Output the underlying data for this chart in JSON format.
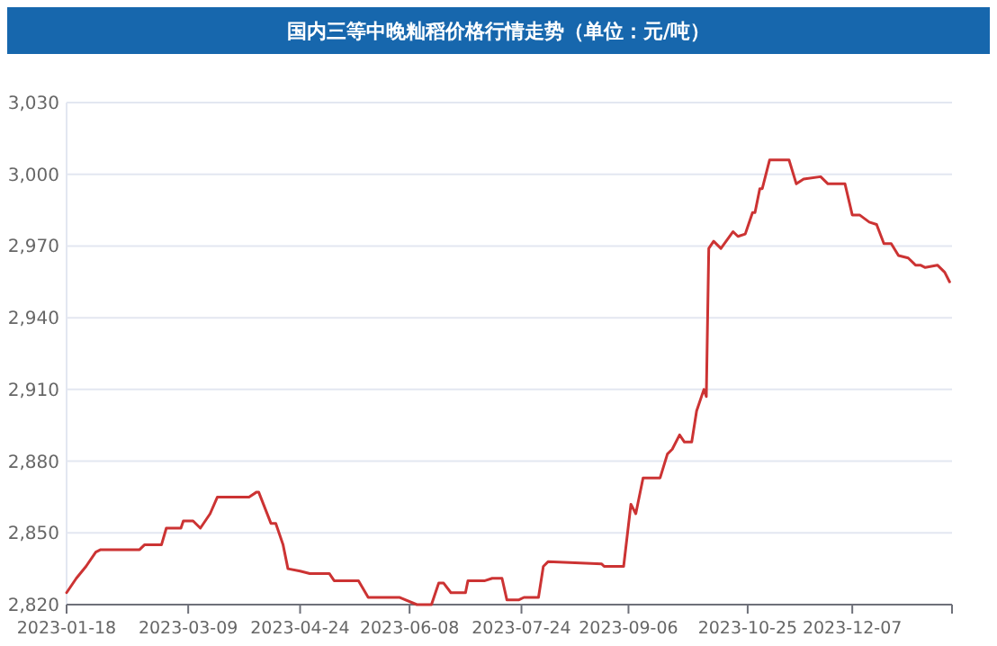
{
  "chart_data": {
    "type": "line",
    "title": "国内三等中晚籼稻价格行情走势（单位：元/吨）",
    "x": [
      "2023-01-18",
      "2023-01-22",
      "2023-01-26",
      "2023-01-30",
      "2023-02-01",
      "2023-02-17",
      "2023-02-19",
      "2023-02-26",
      "2023-02-28",
      "2023-03-06",
      "2023-03-07",
      "2023-03-11",
      "2023-03-14",
      "2023-03-18",
      "2023-03-21",
      "2023-04-03",
      "2023-04-06",
      "2023-04-07",
      "2023-04-12",
      "2023-04-14",
      "2023-04-17",
      "2023-04-19",
      "2023-04-24",
      "2023-04-28",
      "2023-05-06",
      "2023-05-08",
      "2023-05-18",
      "2023-05-22",
      "2023-06-04",
      "2023-06-11",
      "2023-06-17",
      "2023-06-20",
      "2023-06-22",
      "2023-06-25",
      "2023-07-01",
      "2023-07-02",
      "2023-07-09",
      "2023-07-12",
      "2023-07-16",
      "2023-07-18",
      "2023-07-23",
      "2023-07-25",
      "2023-07-31",
      "2023-08-02",
      "2023-08-04",
      "2023-08-26",
      "2023-08-27",
      "2023-09-04",
      "2023-09-07",
      "2023-09-09",
      "2023-09-12",
      "2023-09-19",
      "2023-09-22",
      "2023-09-24",
      "2023-09-27",
      "2023-09-29",
      "2023-10-02",
      "2023-10-04",
      "2023-10-07",
      "2023-10-08",
      "2023-10-09",
      "2023-10-11",
      "2023-10-14",
      "2023-10-19",
      "2023-10-21",
      "2023-10-24",
      "2023-10-27",
      "2023-10-28",
      "2023-10-30",
      "2023-10-31",
      "2023-11-03",
      "2023-11-07",
      "2023-11-11",
      "2023-11-14",
      "2023-11-17",
      "2023-11-24",
      "2023-11-27",
      "2023-12-04",
      "2023-12-07",
      "2023-12-10",
      "2023-12-14",
      "2023-12-17",
      "2023-12-20",
      "2023-12-23",
      "2023-12-26",
      "2023-12-30",
      "2024-01-02",
      "2024-01-04",
      "2024-01-06",
      "2024-01-11",
      "2024-01-14",
      "2024-01-16"
    ],
    "series": [
      {
        "color": "#cc3333",
        "values": [
          2825,
          2831,
          2836,
          2842,
          2843,
          2843,
          2845,
          2845,
          2852,
          2852,
          2855,
          2855,
          2852,
          2858,
          2865,
          2865,
          2867,
          2867,
          2854,
          2854,
          2845,
          2835,
          2834,
          2833,
          2833,
          2830,
          2830,
          2823,
          2823,
          2820,
          2820,
          2829,
          2829,
          2825,
          2825,
          2830,
          2830,
          2831,
          2831,
          2822,
          2822,
          2823,
          2823,
          2836,
          2838,
          2837,
          2836,
          2836,
          2862,
          2858,
          2873,
          2873,
          2883,
          2885,
          2891,
          2888,
          2888,
          2901,
          2910,
          2907,
          2969,
          2972,
          2969,
          2976,
          2974,
          2975,
          2984,
          2984,
          2994,
          2994,
          3006,
          3006,
          3006,
          2996,
          2998,
          2999,
          2996,
          2996,
          2983,
          2983,
          2980,
          2979,
          2971,
          2971,
          2966,
          2965,
          2962,
          2962,
          2961,
          2962,
          2959,
          2955
        ]
      }
    ],
    "xlim": [
      "2023-01-18",
      "2024-01-17"
    ],
    "xticks": [
      {
        "value": "2023-01-18",
        "label": "2023-01-18"
      },
      {
        "value": "2023-03-09",
        "label": "2023-03-09"
      },
      {
        "value": "2023-04-24",
        "label": "2023-04-24"
      },
      {
        "value": "2023-06-08",
        "label": "2023-06-08"
      },
      {
        "value": "2023-07-24",
        "label": "2023-07-24"
      },
      {
        "value": "2023-09-06",
        "label": "2023-09-06"
      },
      {
        "value": "2023-10-25",
        "label": "2023-10-25"
      },
      {
        "value": "2023-12-07",
        "label": "2023-12-07"
      }
    ],
    "ylim": [
      2820,
      3030
    ],
    "yticks": [
      {
        "value": 2820,
        "label": "2,820"
      },
      {
        "value": 2850,
        "label": "2,850"
      },
      {
        "value": 2880,
        "label": "2,880"
      },
      {
        "value": 2910,
        "label": "2,910"
      },
      {
        "value": 2940,
        "label": "2,940"
      },
      {
        "value": 2970,
        "label": "2,970"
      },
      {
        "value": 3000,
        "label": "3,000"
      },
      {
        "value": 3030,
        "label": "3,030"
      }
    ],
    "grid": "y"
  }
}
